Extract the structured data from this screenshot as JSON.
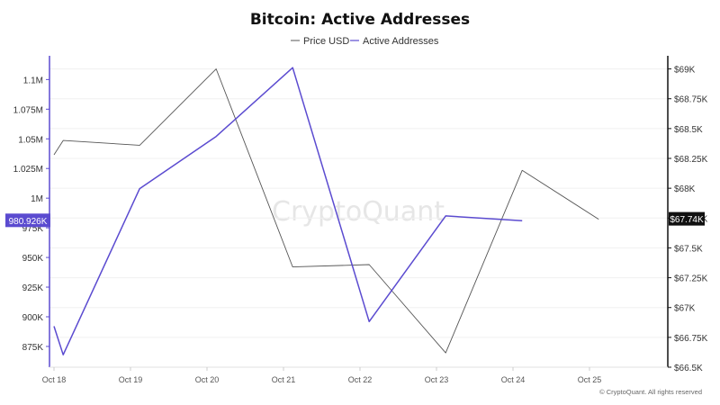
{
  "chart_data": {
    "type": "line",
    "title": "Bitcoin: Active Addresses",
    "categories": [
      "Oct 18",
      "Oct 19",
      "Oct 20",
      "Oct 21",
      "Oct 22",
      "Oct 23",
      "Oct 24",
      "Oct 25"
    ],
    "series": [
      {
        "name": "Price USD",
        "axis": "right",
        "color": "#555555",
        "x": [
          0,
          0.12,
          1.12,
          2.12,
          3.12,
          4.12,
          5.12,
          6.12,
          7.12
        ],
        "values": [
          68280,
          68400,
          68360,
          69000,
          67340,
          67360,
          66620,
          68150,
          67740
        ]
      },
      {
        "name": "Active Addresses",
        "axis": "left",
        "color": "#5b4bd0",
        "x": [
          0,
          0.12,
          1.12,
          2.12,
          3.12,
          4.12,
          5.12,
          6.12
        ],
        "values": [
          892000,
          868000,
          1008000,
          1052000,
          1110000,
          896000,
          985000,
          980926
        ]
      }
    ],
    "y_left": {
      "ticks": [
        875000,
        900000,
        925000,
        950000,
        975000,
        1000000,
        1025000,
        1050000,
        1075000,
        1100000
      ],
      "tick_labels": [
        "875K",
        "900K",
        "925K",
        "950K",
        "975K",
        "1M",
        "1.025M",
        "1.05M",
        "1.075M",
        "1.1M"
      ],
      "range": [
        857500,
        1120000
      ]
    },
    "y_right": {
      "ticks": [
        66500,
        66750,
        67000,
        67250,
        67500,
        67750,
        68000,
        68250,
        68500,
        68750,
        69000
      ],
      "tick_labels": [
        "$66.5K",
        "$66.75K",
        "$67K",
        "$67.25K",
        "$67.5K",
        "$67.75K",
        "$68K",
        "$68.25K",
        "$68.5K",
        "$68.75K",
        "$69K"
      ],
      "range": [
        66500,
        69110
      ]
    },
    "current_left_label": "980.926K",
    "current_right_label": "$67.74K",
    "grid": true,
    "legend_position": "top-center",
    "watermark": "CryptoQuant",
    "credit": "© CryptoQuant. All rights reserved"
  }
}
